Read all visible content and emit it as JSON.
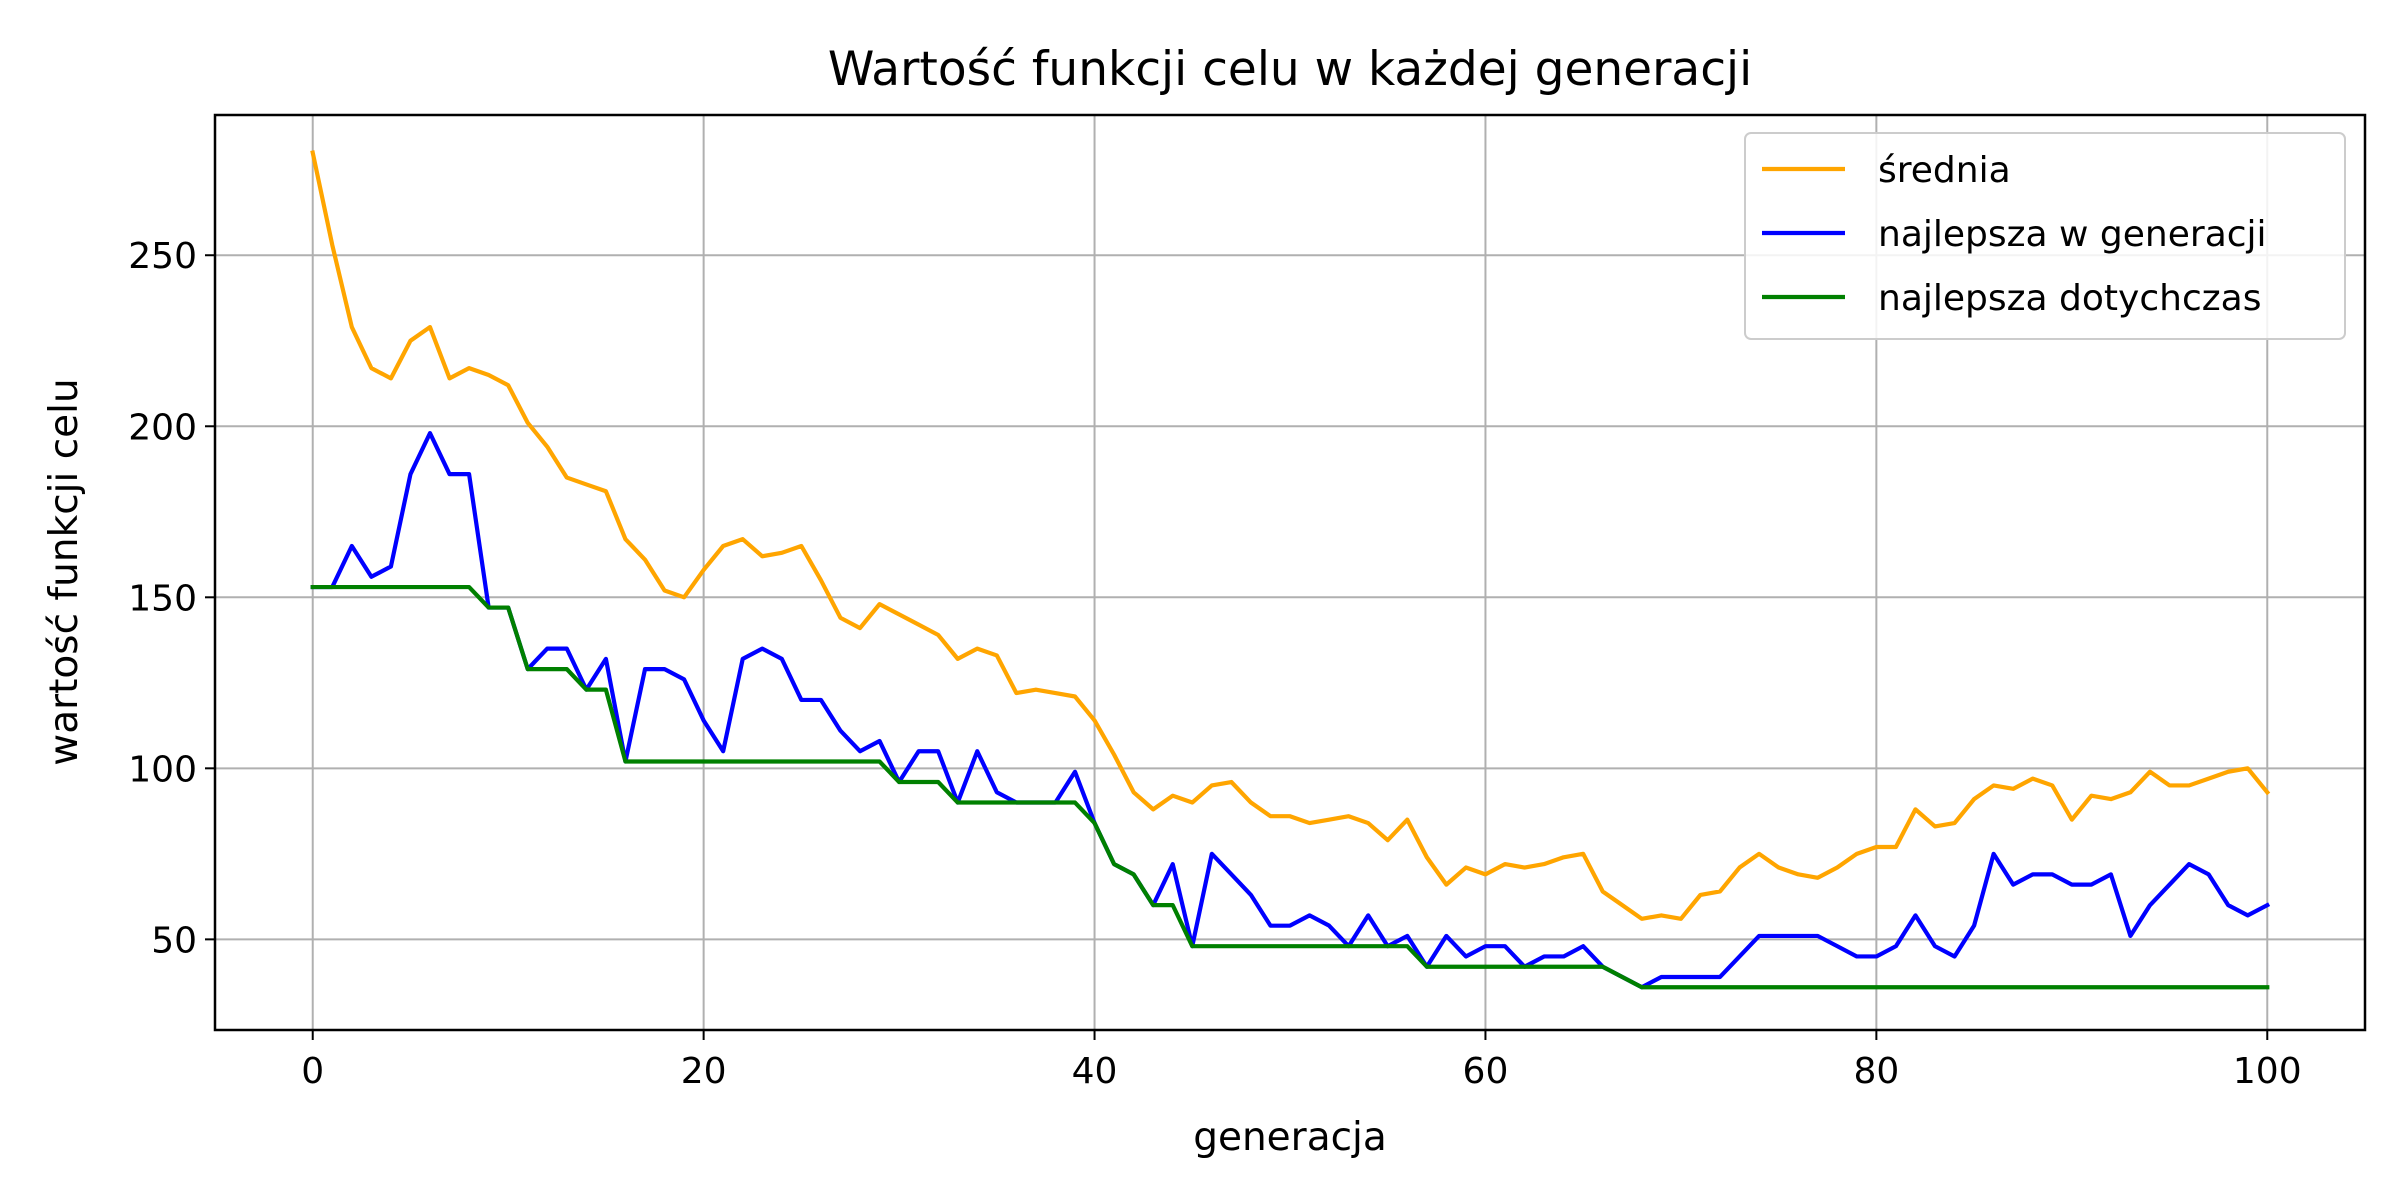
{
  "chart_data": {
    "type": "line",
    "title": "Wartość funkcji celu w każdej generacji",
    "xlabel": "generacja",
    "ylabel": "wartość funkcji celu",
    "xlim": [
      -5,
      105
    ],
    "ylim": [
      23.5,
      291
    ],
    "xticks": [
      0,
      20,
      40,
      60,
      80,
      100
    ],
    "yticks": [
      50,
      100,
      150,
      200,
      250
    ],
    "grid": true,
    "legend_position": "top-right",
    "x": [
      0,
      1,
      2,
      3,
      4,
      5,
      6,
      7,
      8,
      9,
      10,
      11,
      12,
      13,
      14,
      15,
      16,
      17,
      18,
      19,
      20,
      21,
      22,
      23,
      24,
      25,
      26,
      27,
      28,
      29,
      30,
      31,
      32,
      33,
      34,
      35,
      36,
      37,
      38,
      39,
      40,
      41,
      42,
      43,
      44,
      45,
      46,
      47,
      48,
      49,
      50,
      51,
      52,
      53,
      54,
      55,
      56,
      57,
      58,
      59,
      60,
      61,
      62,
      63,
      64,
      65,
      66,
      67,
      68,
      69,
      70,
      71,
      72,
      73,
      74,
      75,
      76,
      77,
      78,
      79,
      80,
      81,
      82,
      83,
      84,
      85,
      86,
      87,
      88,
      89,
      90,
      91,
      92,
      93,
      94,
      95,
      96,
      97,
      98,
      99,
      100
    ],
    "series": [
      {
        "name": "średnia",
        "color": "#ffa500",
        "values": [
          280,
          253,
          229,
          217,
          214,
          225,
          229,
          214,
          217,
          215,
          212,
          201,
          194,
          185,
          183,
          181,
          167,
          161,
          152,
          150,
          158,
          165,
          167,
          162,
          163,
          165,
          155,
          144,
          141,
          148,
          145,
          142,
          139,
          132,
          135,
          133,
          122,
          123,
          122,
          121,
          114,
          104,
          93,
          88,
          92,
          90,
          95,
          96,
          90,
          86,
          86,
          84,
          85,
          86,
          84,
          79,
          85,
          74,
          66,
          71,
          69,
          72,
          71,
          72,
          74,
          75,
          64,
          60,
          56,
          57,
          56,
          63,
          64,
          71,
          75,
          71,
          69,
          68,
          71,
          75,
          77,
          77,
          88,
          83,
          84,
          91,
          95,
          94,
          97,
          95,
          85,
          92,
          91,
          93,
          99,
          95,
          95,
          97,
          99,
          100,
          93
        ]
      },
      {
        "name": "najlepsza w generacji",
        "color": "#0000ff",
        "values": [
          153,
          153,
          165,
          156,
          159,
          186,
          198,
          186,
          186,
          147,
          147,
          129,
          135,
          135,
          123,
          132,
          102,
          129,
          129,
          126,
          114,
          105,
          132,
          135,
          132,
          120,
          120,
          111,
          105,
          108,
          96,
          105,
          105,
          90,
          105,
          93,
          90,
          90,
          90,
          99,
          84,
          72,
          69,
          60,
          72,
          48,
          75,
          69,
          63,
          54,
          54,
          57,
          54,
          48,
          57,
          48,
          51,
          42,
          51,
          45,
          48,
          48,
          42,
          45,
          45,
          48,
          42,
          39,
          36,
          39,
          39,
          39,
          39,
          45,
          51,
          51,
          51,
          51,
          48,
          45,
          45,
          48,
          57,
          48,
          45,
          54,
          75,
          66,
          69,
          69,
          66,
          66,
          69,
          51,
          60,
          66,
          72,
          69,
          60,
          57,
          60
        ]
      },
      {
        "name": "najlepsza dotychczas",
        "color": "#008000",
        "values": [
          153,
          153,
          153,
          153,
          153,
          153,
          153,
          153,
          153,
          147,
          147,
          129,
          129,
          129,
          123,
          123,
          102,
          102,
          102,
          102,
          102,
          102,
          102,
          102,
          102,
          102,
          102,
          102,
          102,
          102,
          96,
          96,
          96,
          90,
          90,
          90,
          90,
          90,
          90,
          90,
          84,
          72,
          69,
          60,
          60,
          48,
          48,
          48,
          48,
          48,
          48,
          48,
          48,
          48,
          48,
          48,
          48,
          42,
          42,
          42,
          42,
          42,
          42,
          42,
          42,
          42,
          42,
          39,
          36,
          36,
          36,
          36,
          36,
          36,
          36,
          36,
          36,
          36,
          36,
          36,
          36,
          36,
          36,
          36,
          36,
          36,
          36,
          36,
          36,
          36,
          36,
          36,
          36,
          36,
          36,
          36,
          36,
          36,
          36,
          36,
          36
        ]
      }
    ]
  }
}
